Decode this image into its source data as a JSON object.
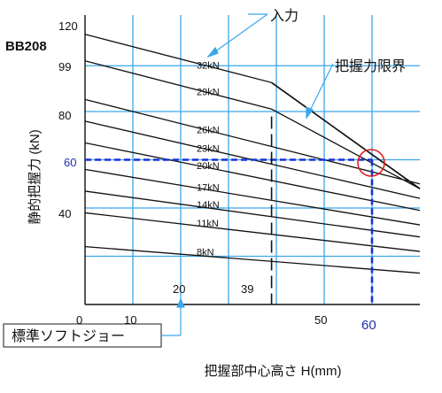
{
  "chart_data": {
    "type": "line",
    "model": "BB208",
    "xlabel": "把握部中心高さ H(mm)",
    "ylabel": "静的把握力 (kN)",
    "x_ticks": [
      "0",
      "10",
      "50"
    ],
    "x_inner_ticks": [
      "20",
      "39"
    ],
    "x_highlight": "60",
    "y_ticks": [
      "40",
      "80",
      "99",
      "120"
    ],
    "y_highlight": "60",
    "xlim": [
      0,
      70
    ],
    "ylim": [
      0,
      120
    ],
    "grid": true,
    "series": [
      {
        "name": "32kN",
        "x": [
          0,
          39,
          70
        ],
        "y": [
          112,
          92,
          48
        ]
      },
      {
        "name": "29kN",
        "x": [
          0,
          39,
          70
        ],
        "y": [
          101,
          81,
          48
        ]
      },
      {
        "name": "26kN",
        "x": [
          0,
          70
        ],
        "y": [
          85,
          50
        ]
      },
      {
        "name": "23kN",
        "x": [
          0,
          70
        ],
        "y": [
          76,
          44
        ]
      },
      {
        "name": "20kN",
        "x": [
          0,
          70
        ],
        "y": [
          67,
          39
        ]
      },
      {
        "name": "17kN",
        "x": [
          0,
          70
        ],
        "y": [
          56,
          33
        ]
      },
      {
        "name": "14kN",
        "x": [
          0,
          70
        ],
        "y": [
          47,
          28
        ]
      },
      {
        "name": "11kN",
        "x": [
          0,
          70
        ],
        "y": [
          38,
          22
        ]
      },
      {
        "name": "8kN",
        "x": [
          0,
          70
        ],
        "y": [
          24,
          13
        ]
      }
    ],
    "grip_limit": {
      "x": [
        39,
        70
      ],
      "y": [
        92,
        48
      ]
    },
    "marked_point": {
      "x": 60,
      "y": 60
    },
    "annotations": {
      "input": "入力",
      "grip_limit": "把握力限界",
      "standard_jaw": "標準ソフトジョー"
    }
  }
}
